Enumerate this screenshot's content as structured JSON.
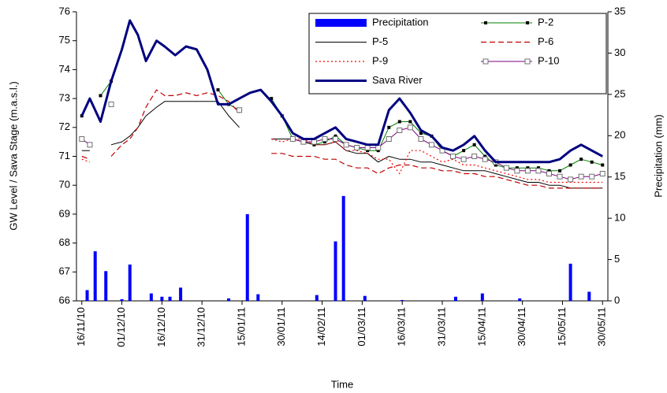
{
  "chart_data": {
    "type": "line",
    "y_label": "GW Level / Sava Stage (m.a.s.l.)",
    "y2_label": "Precipitation (mm)",
    "x_label": "Time",
    "xlim": [
      "14/11/10",
      "01/06/11"
    ],
    "xticks": [
      "16/11/10",
      "01/12/10",
      "16/12/10",
      "31/12/10",
      "15/01/11",
      "30/01/11",
      "14/02/11",
      "01/03/11",
      "16/03/11",
      "31/03/11",
      "15/04/11",
      "30/04/11",
      "15/05/11",
      "30/05/11"
    ],
    "ylim": [
      66,
      76
    ],
    "yticks": [
      66,
      67,
      68,
      69,
      70,
      71,
      72,
      73,
      74,
      75,
      76
    ],
    "y2lim": [
      0,
      35
    ],
    "y2ticks": [
      0,
      5,
      10,
      15,
      20,
      25,
      30,
      35
    ],
    "grid": false,
    "legend": "upper right",
    "x": [
      "16/11/10",
      "19/11/10",
      "23/11/10",
      "27/11/10",
      "01/12/10",
      "04/12/10",
      "07/12/10",
      "10/12/10",
      "14/12/10",
      "17/12/10",
      "21/12/10",
      "25/12/10",
      "29/12/10",
      "02/01/11",
      "06/01/11",
      "10/01/11",
      "14/01/11",
      "18/01/11",
      "22/01/11",
      "26/01/11",
      "30/01/11",
      "03/02/11",
      "07/02/11",
      "11/02/11",
      "15/02/11",
      "19/02/11",
      "23/02/11",
      "27/02/11",
      "03/03/11",
      "07/03/11",
      "11/03/11",
      "15/03/11",
      "19/03/11",
      "23/03/11",
      "27/03/11",
      "31/03/11",
      "04/04/11",
      "08/04/11",
      "12/04/11",
      "16/04/11",
      "20/04/11",
      "24/04/11",
      "28/04/11",
      "02/05/11",
      "06/05/11",
      "10/05/11",
      "14/05/11",
      "18/05/11",
      "22/05/11",
      "26/05/11",
      "30/05/11"
    ],
    "series": [
      {
        "name": "Precipitation",
        "type": "bar",
        "axis": "y2",
        "color": "#0000ff",
        "x": [
          "18/11/10",
          "21/11/10",
          "25/11/10",
          "01/12/10",
          "04/12/10",
          "12/12/10",
          "16/12/10",
          "19/12/10",
          "23/12/10",
          "10/01/11",
          "17/01/11",
          "21/01/11",
          "12/02/11",
          "19/02/11",
          "22/02/11",
          "02/03/11",
          "16/03/11",
          "05/04/11",
          "15/04/11",
          "29/04/11",
          "18/05/11",
          "25/05/11"
        ],
        "values": [
          1.3,
          6.0,
          3.6,
          0.2,
          4.4,
          0.9,
          0.5,
          0.5,
          1.6,
          0.3,
          10.5,
          0.8,
          0.7,
          7.2,
          12.7,
          0.6,
          0.1,
          0.5,
          0.9,
          0.3,
          4.5,
          1.1
        ]
      },
      {
        "name": "P-2",
        "type": "line",
        "color": "#008000",
        "width": 1,
        "marker": "filled-square",
        "marker_color": "#000000",
        "values": [
          72.4,
          null,
          73.1,
          73.6,
          null,
          null,
          null,
          null,
          null,
          null,
          null,
          null,
          null,
          null,
          73.3,
          72.8,
          72.6,
          null,
          null,
          73.0,
          72.4,
          71.6,
          71.5,
          71.4,
          71.5,
          71.7,
          71.4,
          71.3,
          71.2,
          71.2,
          72.0,
          72.2,
          72.2,
          71.8,
          71.7,
          71.2,
          71.0,
          71.2,
          71.4,
          71.0,
          70.7,
          70.6,
          70.6,
          70.6,
          70.6,
          70.5,
          70.5,
          70.7,
          70.9,
          70.8,
          70.7
        ]
      },
      {
        "name": "P-5",
        "type": "line",
        "color": "#000000",
        "width": 1,
        "values": [
          71.2,
          71.2,
          null,
          71.4,
          71.5,
          71.7,
          72.0,
          72.4,
          72.7,
          72.9,
          72.9,
          72.9,
          72.9,
          72.9,
          72.9,
          72.4,
          72.0,
          null,
          null,
          71.6,
          71.6,
          71.6,
          71.5,
          71.4,
          71.4,
          71.5,
          71.2,
          71.1,
          71.1,
          70.8,
          71.0,
          70.9,
          70.9,
          70.8,
          70.8,
          70.7,
          70.6,
          70.5,
          70.5,
          70.5,
          70.4,
          70.3,
          70.2,
          70.1,
          70.1,
          70.0,
          70.0,
          69.9,
          69.9,
          69.9,
          69.9
        ]
      },
      {
        "name": "P-6",
        "type": "line",
        "color": "#c00000",
        "width": 1.2,
        "dash": "dashed",
        "values": [
          71.0,
          70.9,
          null,
          71.0,
          71.4,
          71.6,
          72.0,
          72.7,
          73.3,
          73.1,
          73.1,
          73.2,
          73.1,
          73.2,
          73.1,
          72.9,
          72.5,
          null,
          null,
          71.1,
          71.1,
          71.0,
          71.0,
          71.0,
          70.9,
          70.9,
          70.7,
          70.6,
          70.6,
          70.4,
          70.6,
          70.7,
          70.7,
          70.6,
          70.6,
          70.5,
          70.5,
          70.4,
          70.4,
          70.3,
          70.3,
          70.2,
          70.1,
          70.0,
          70.0,
          69.9,
          69.9,
          69.9,
          69.9,
          69.9,
          69.9
        ]
      },
      {
        "name": "P-9",
        "type": "line",
        "color": "#ff0000",
        "width": 1.2,
        "dash": "dotted",
        "values": [
          70.9,
          70.8,
          null,
          null,
          null,
          null,
          null,
          null,
          null,
          null,
          null,
          null,
          null,
          null,
          null,
          null,
          null,
          null,
          null,
          71.6,
          71.5,
          71.6,
          71.6,
          71.4,
          71.4,
          71.5,
          71.2,
          71.2,
          71.1,
          70.9,
          70.9,
          70.4,
          71.2,
          71.2,
          71.0,
          70.8,
          70.9,
          70.7,
          70.7,
          70.6,
          70.5,
          70.4,
          70.3,
          70.2,
          70.2,
          70.1,
          70.1,
          70.1,
          70.1,
          70.1,
          70.1
        ]
      },
      {
        "name": "P-10",
        "type": "line",
        "color": "#800080",
        "width": 1,
        "marker": "open-square",
        "marker_color": "#707070",
        "values": [
          71.6,
          71.4,
          null,
          72.8,
          null,
          null,
          null,
          null,
          null,
          null,
          null,
          null,
          null,
          null,
          null,
          null,
          72.6,
          null,
          null,
          null,
          null,
          71.6,
          71.5,
          71.5,
          71.6,
          71.6,
          71.4,
          71.3,
          71.3,
          71.3,
          71.6,
          71.9,
          72.0,
          71.6,
          71.4,
          71.2,
          71.0,
          70.9,
          71.0,
          70.9,
          70.8,
          70.6,
          70.5,
          70.5,
          70.5,
          70.4,
          70.3,
          70.2,
          70.3,
          70.3,
          70.4
        ]
      },
      {
        "name": "Sava River",
        "type": "line",
        "color": "#000080",
        "width": 3,
        "values": [
          72.4,
          73.0,
          72.2,
          73.6,
          74.7,
          75.7,
          75.2,
          74.3,
          75.0,
          74.8,
          74.5,
          74.8,
          74.7,
          74.0,
          72.8,
          72.8,
          73.0,
          73.2,
          73.3,
          72.9,
          72.4,
          71.8,
          71.6,
          71.6,
          71.8,
          72.0,
          71.6,
          71.5,
          71.4,
          71.4,
          72.6,
          73.0,
          72.5,
          71.9,
          71.7,
          71.3,
          71.2,
          71.4,
          71.7,
          71.2,
          70.8,
          70.8,
          70.8,
          70.8,
          70.8,
          70.8,
          70.9,
          71.2,
          71.4,
          71.2,
          71.0
        ]
      }
    ]
  }
}
